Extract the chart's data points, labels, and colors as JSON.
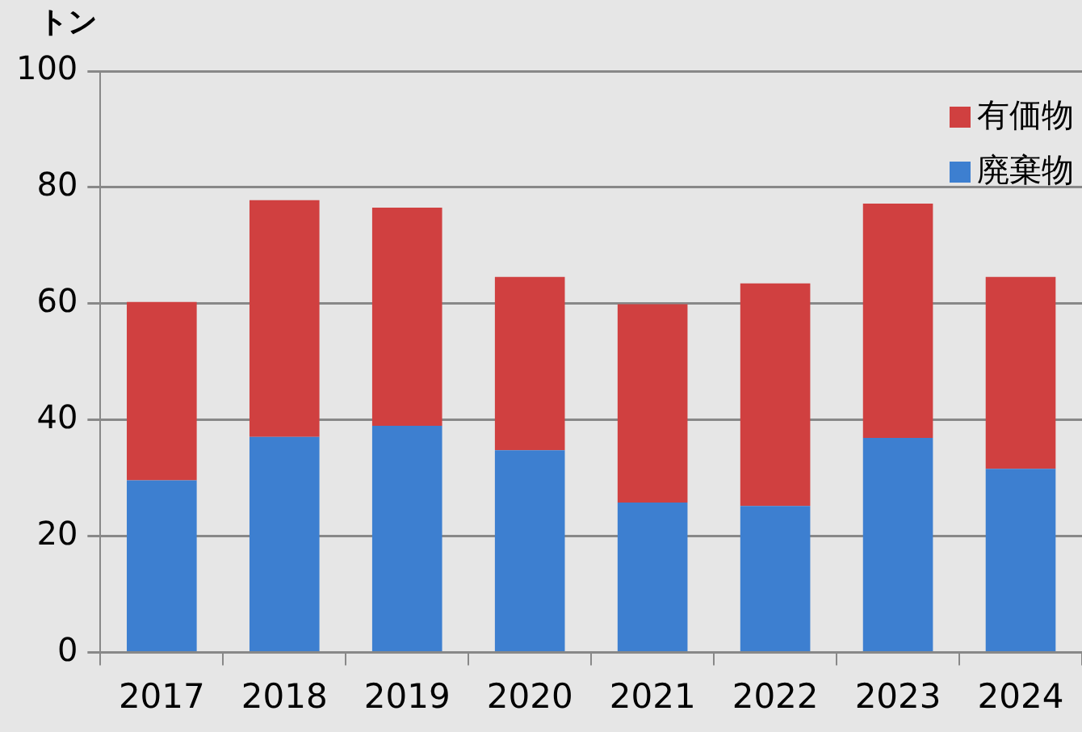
{
  "chart_data": {
    "type": "bar",
    "stacked": true,
    "ylabel": "トン",
    "categories": [
      "2017",
      "2018",
      "2019",
      "2020",
      "2021",
      "2022",
      "2023",
      "2024"
    ],
    "series": [
      {
        "name": "廃棄物",
        "color": "#3d7fd0",
        "values": [
          29.6,
          37.1,
          39.0,
          34.8,
          25.8,
          25.2,
          36.9,
          31.6
        ]
      },
      {
        "name": "有価物",
        "color": "#d04040",
        "values": [
          30.7,
          40.7,
          37.5,
          29.8,
          34.1,
          38.3,
          40.3,
          33.0
        ]
      }
    ],
    "ylim": [
      0,
      100
    ],
    "yticks": [
      0,
      20,
      40,
      60,
      80,
      100
    ],
    "grid": "y",
    "legend": "top right"
  }
}
